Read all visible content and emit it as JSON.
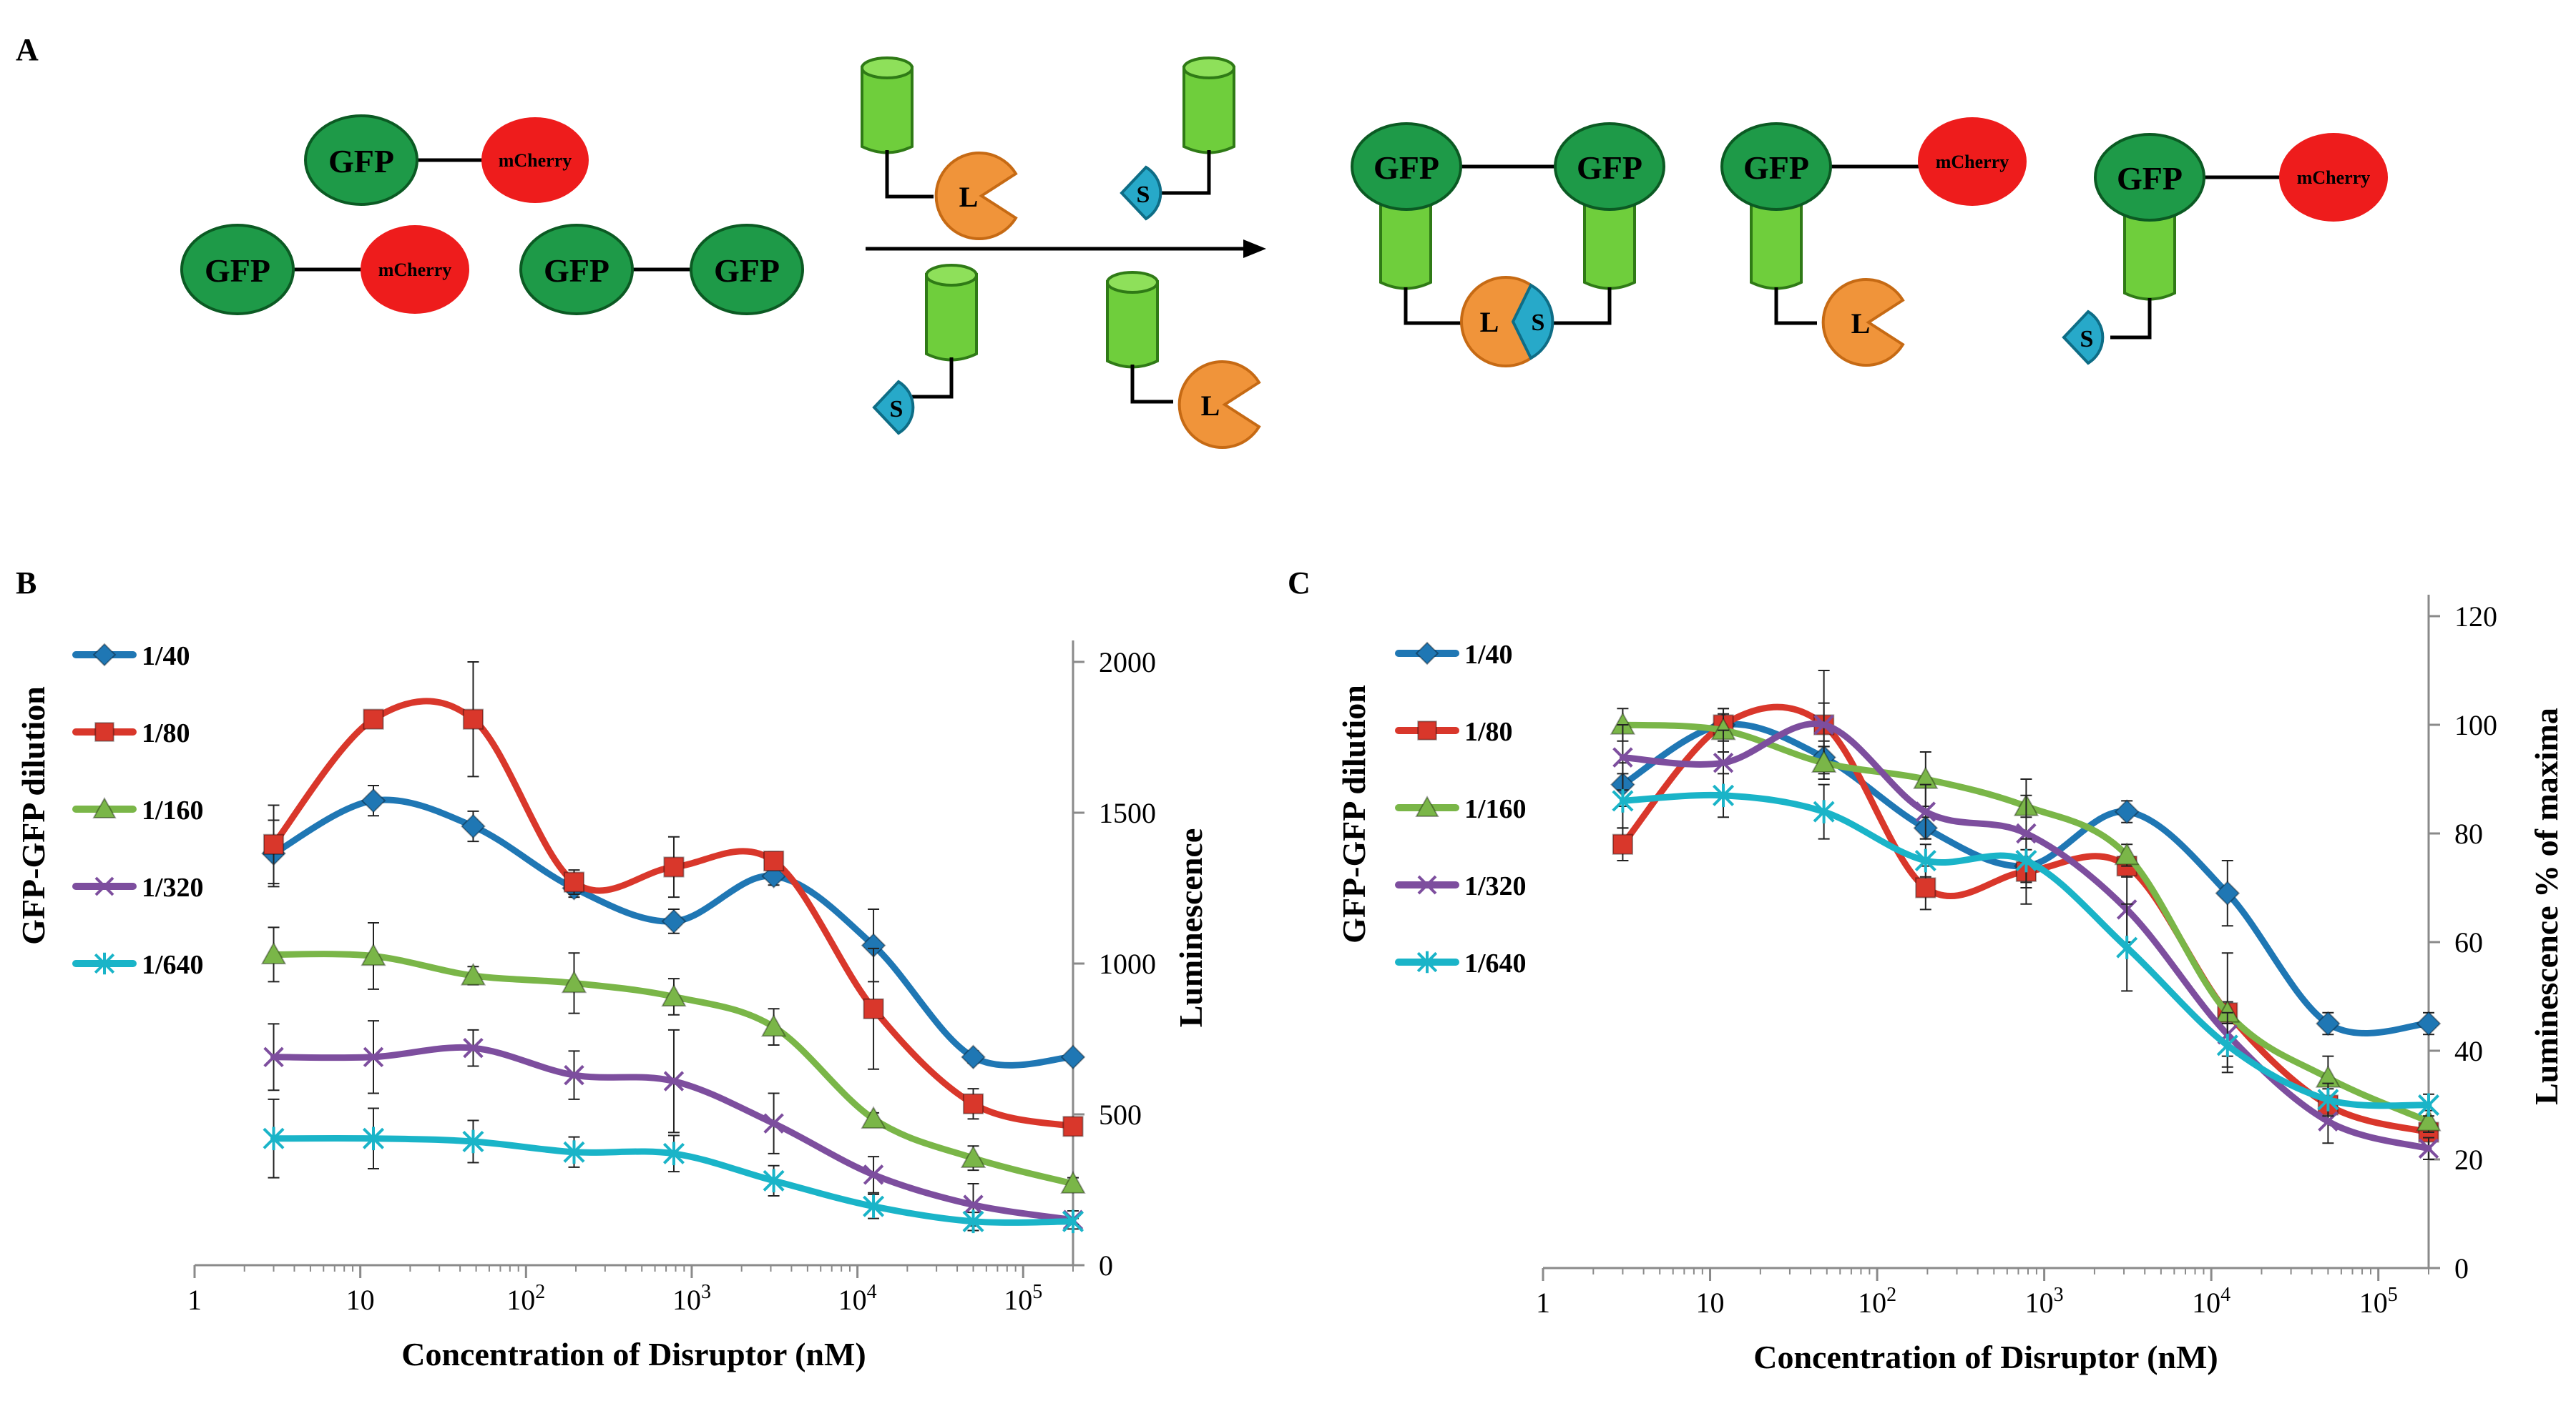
{
  "figure": {
    "panel_labels": {
      "a": "A",
      "b": "B",
      "c": "C"
    },
    "schematic": {
      "gfp": "GFP",
      "mcherry": "mCherry",
      "large_fragment": "L",
      "small_fragment": "S"
    }
  },
  "chart_data": [
    {
      "panel": "B",
      "type": "line",
      "xscale": "log",
      "xlim": [
        1,
        200000
      ],
      "ylim": [
        0,
        2000
      ],
      "xlabel": "Concentration of Disruptor (nM)",
      "ylabel": "Luminescence",
      "legend_title": "GFP-GFP dilution",
      "legend_position": "left",
      "y_axis_side": "right",
      "xticks": [
        {
          "v": 1,
          "b": "1",
          "e": ""
        },
        {
          "v": 10,
          "b": "10",
          "e": ""
        },
        {
          "v": 100,
          "b": "10",
          "e": "2"
        },
        {
          "v": 1000,
          "b": "10",
          "e": "3"
        },
        {
          "v": 10000,
          "b": "10",
          "e": "4"
        },
        {
          "v": 100000,
          "b": "10",
          "e": "5"
        }
      ],
      "yticks": [
        0,
        500,
        1000,
        1500,
        2000
      ],
      "x": [
        3,
        12,
        48,
        195,
        780,
        3125,
        12500,
        50000,
        200000
      ],
      "series": [
        {
          "name": "1/40",
          "color": "#1f77b4",
          "marker": "diamond",
          "values": [
            1365,
            1540,
            1455,
            1250,
            1140,
            1290,
            1060,
            690,
            690
          ],
          "errors": [
            110,
            50,
            50,
            30,
            40,
            30,
            120,
            20,
            10
          ]
        },
        {
          "name": "1/80",
          "color": "#d9372b",
          "marker": "square",
          "values": [
            1395,
            1810,
            1810,
            1270,
            1320,
            1340,
            850,
            535,
            460
          ],
          "errors": [
            130,
            20,
            190,
            40,
            100,
            30,
            200,
            50,
            20
          ]
        },
        {
          "name": "1/160",
          "color": "#7ab648",
          "marker": "triangle",
          "values": [
            1030,
            1025,
            960,
            935,
            890,
            790,
            485,
            355,
            270
          ],
          "errors": [
            90,
            110,
            30,
            100,
            60,
            60,
            20,
            40,
            20
          ]
        },
        {
          "name": "1/320",
          "color": "#7d4e9e",
          "marker": "x",
          "values": [
            690,
            690,
            720,
            630,
            610,
            470,
            300,
            200,
            150
          ],
          "errors": [
            110,
            120,
            60,
            80,
            170,
            100,
            60,
            70,
            30
          ]
        },
        {
          "name": "1/640",
          "color": "#1ab4c8",
          "marker": "star",
          "values": [
            420,
            420,
            410,
            375,
            370,
            280,
            195,
            145,
            145
          ],
          "errors": [
            130,
            100,
            70,
            50,
            60,
            50,
            40,
            30,
            10
          ]
        }
      ]
    },
    {
      "panel": "C",
      "type": "line",
      "xscale": "log",
      "xlim": [
        1,
        200000
      ],
      "ylim": [
        0,
        120
      ],
      "xlabel": "Concentration of Disruptor (nM)",
      "ylabel": "Luminescence % of maxima",
      "legend_title": "GFP-GFP dilution",
      "legend_position": "left",
      "y_axis_side": "right",
      "xticks": [
        {
          "v": 1,
          "b": "1",
          "e": ""
        },
        {
          "v": 10,
          "b": "10",
          "e": ""
        },
        {
          "v": 100,
          "b": "10",
          "e": "2"
        },
        {
          "v": 1000,
          "b": "10",
          "e": "3"
        },
        {
          "v": 10000,
          "b": "10",
          "e": "4"
        },
        {
          "v": 100000,
          "b": "10",
          "e": "5"
        }
      ],
      "yticks": [
        0,
        20,
        40,
        60,
        80,
        100,
        120
      ],
      "x": [
        3,
        12,
        48,
        195,
        780,
        3125,
        12500,
        50000,
        200000
      ],
      "series": [
        {
          "name": "1/40",
          "color": "#1f77b4",
          "marker": "diamond",
          "values": [
            89,
            100,
            94,
            81,
            74,
            84,
            69,
            45,
            45
          ],
          "errors": [
            4,
            3,
            3,
            2,
            3,
            2,
            6,
            2,
            2
          ]
        },
        {
          "name": "1/80",
          "color": "#d9372b",
          "marker": "square",
          "values": [
            78,
            100,
            100,
            70,
            73,
            74,
            47,
            30,
            25
          ],
          "errors": [
            3,
            2,
            10,
            4,
            6,
            2,
            11,
            3,
            1
          ]
        },
        {
          "name": "1/160",
          "color": "#7ab648",
          "marker": "triangle",
          "values": [
            100,
            99,
            93,
            90,
            85,
            76,
            47,
            35,
            27
          ],
          "errors": [
            3,
            4,
            3,
            5,
            2,
            2,
            2,
            4,
            2
          ]
        },
        {
          "name": "1/320",
          "color": "#7d4e9e",
          "marker": "x",
          "values": [
            94,
            93,
            100,
            84,
            80,
            66,
            43,
            27,
            22
          ],
          "errors": [
            6,
            6,
            4,
            5,
            10,
            6,
            4,
            4,
            2
          ]
        },
        {
          "name": "1/640",
          "color": "#1ab4c8",
          "marker": "star",
          "values": [
            86,
            87,
            84,
            75,
            75,
            59,
            41,
            31,
            30
          ],
          "errors": [
            5,
            4,
            5,
            3,
            4,
            8,
            4,
            3,
            2
          ]
        }
      ]
    }
  ]
}
